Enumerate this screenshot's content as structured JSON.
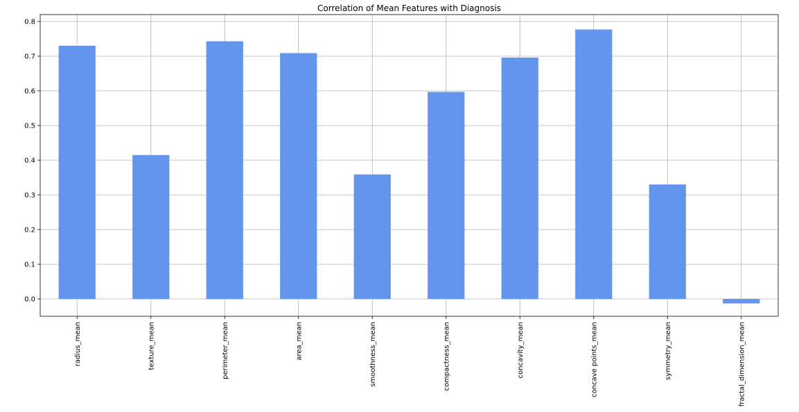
{
  "chart_data": {
    "type": "bar",
    "title": "Correlation of Mean Features with Diagnosis",
    "xlabel": "",
    "ylabel": "",
    "categories": [
      "radius_mean",
      "texture_mean",
      "perimeter_mean",
      "area_mean",
      "smoothness_mean",
      "compactness_mean",
      "concavity_mean",
      "concave points_mean",
      "symmetry_mean",
      "fractal_dimension_mean"
    ],
    "values": [
      0.73,
      0.415,
      0.743,
      0.709,
      0.359,
      0.597,
      0.696,
      0.777,
      0.33,
      -0.013
    ],
    "ylim": [
      -0.05,
      0.82
    ],
    "yticks": [
      "0.0",
      "0.1",
      "0.2",
      "0.3",
      "0.4",
      "0.5",
      "0.6",
      "0.7",
      "0.8"
    ],
    "grid": true,
    "bar_color": "#6495ed"
  }
}
